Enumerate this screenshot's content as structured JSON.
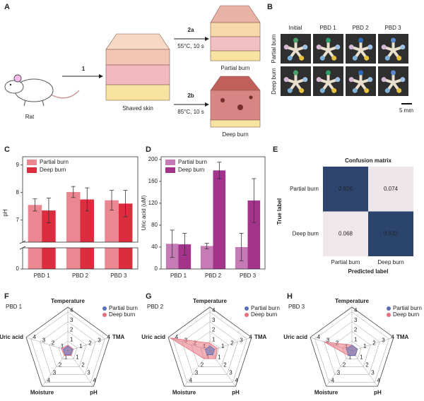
{
  "schematic": {
    "label": "A",
    "step1": "1",
    "step2a": "2a",
    "cond2a": "55°C, 10 s",
    "step2b": "2b",
    "cond2b": "85°C, 10 s",
    "rat": "Rat",
    "skin": "Shaved skin",
    "partial": "Partial burn",
    "deep": "Deep burn"
  },
  "photos": {
    "label": "B",
    "columns": [
      "Initial",
      "PBD 1",
      "PBD 2",
      "PBD 3"
    ],
    "rows": [
      "Partial burn",
      "Deep burn"
    ],
    "scale": "5 mm"
  },
  "chart_data": [
    {
      "type": "bar",
      "label": "C",
      "categories": [
        "PBD 1",
        "PBD 2",
        "PBD 3"
      ],
      "ylabel": "pH",
      "ylim": [
        0,
        9.3
      ],
      "ybreak": [
        0.6,
        6.2
      ],
      "yticks": [
        0,
        7,
        8,
        9
      ],
      "legend": "upper left",
      "series": [
        {
          "name": "Partial burn",
          "color": "#ea8791",
          "values": [
            7.55,
            8.02,
            7.72
          ],
          "errors": [
            0.22,
            0.2,
            0.36
          ]
        },
        {
          "name": "Deep burn",
          "color": "#dc2d3f",
          "values": [
            7.35,
            7.75,
            7.6
          ],
          "errors": [
            0.45,
            0.42,
            0.48
          ]
        }
      ]
    },
    {
      "type": "bar",
      "label": "D",
      "categories": [
        "PBD 1",
        "PBD 2",
        "PBD 3"
      ],
      "ylabel": "Uric acid (uM)",
      "ylim": [
        0,
        205
      ],
      "yticks": [
        0,
        40,
        80,
        120,
        160,
        200
      ],
      "legend": "upper left",
      "series": [
        {
          "name": "Partial burn",
          "color": "#c77bb6",
          "values": [
            46,
            42,
            40
          ],
          "errors": [
            25,
            5,
            25
          ]
        },
        {
          "name": "Deep burn",
          "color": "#a3338b",
          "values": [
            45,
            180,
            125
          ],
          "errors": [
            20,
            15,
            40
          ]
        }
      ]
    },
    {
      "type": "heatmap",
      "label": "E",
      "title": "Confusion matrix",
      "rows": [
        "Partial burn",
        "Deep burn"
      ],
      "columns": [
        "Partial burn",
        "Deep burn"
      ],
      "values": [
        [
          0.926,
          0.074
        ],
        [
          0.068,
          0.932
        ]
      ],
      "xlabel": "Predicted label",
      "ylabel": "True label",
      "cmap": [
        "#fff4f4",
        "#1c3763"
      ]
    },
    {
      "type": "radar",
      "label": "F",
      "title": "PBD 1",
      "axes": [
        "Temperature",
        "TMA",
        "pH",
        "Moisture",
        "Uric acid"
      ],
      "axis_colors": [
        "#8aa63a",
        "#8f9ccc",
        "#e07a9a",
        "#3aa98a",
        "#a8387a"
      ],
      "rlim": [
        0,
        4.5
      ],
      "rticks": [
        1,
        2,
        3,
        4
      ],
      "legend": "upper right",
      "series": [
        {
          "name": "Partial burn",
          "color": "#5b6fb8",
          "values": [
            0.5,
            0.5,
            0.5,
            0.5,
            0.5
          ]
        },
        {
          "name": "Deep burn",
          "color": "#e8707c",
          "values": [
            0.6,
            0.6,
            0.6,
            0.6,
            0.7
          ]
        }
      ]
    },
    {
      "type": "radar",
      "label": "G",
      "title": "PBD 2",
      "axes": [
        "Temperature",
        "TMA",
        "pH",
        "Moisture",
        "Uric acid"
      ],
      "axis_colors": [
        "#8aa63a",
        "#8f9ccc",
        "#e07a9a",
        "#3aa98a",
        "#a8387a"
      ],
      "rlim": [
        0,
        4.5
      ],
      "rticks": [
        1,
        2,
        3,
        4
      ],
      "legend": "upper right",
      "series": [
        {
          "name": "Partial burn",
          "color": "#5b6fb8",
          "values": [
            0.5,
            0.5,
            0.5,
            0.5,
            0.5
          ]
        },
        {
          "name": "Deep burn",
          "color": "#e8707c",
          "values": [
            0.8,
            0.8,
            1,
            1,
            4.3
          ]
        }
      ]
    },
    {
      "type": "radar",
      "label": "H",
      "title": "PBD 3",
      "axes": [
        "Temperature",
        "TMA",
        "pH",
        "Moisture",
        "Uric acid"
      ],
      "axis_colors": [
        "#8aa63a",
        "#8f9ccc",
        "#e07a9a",
        "#3aa98a",
        "#a8387a"
      ],
      "rlim": [
        0,
        4.5
      ],
      "rticks": [
        1,
        2,
        3,
        4
      ],
      "legend": "upper right",
      "series": [
        {
          "name": "Partial burn",
          "color": "#5b6fb8",
          "values": [
            0.6,
            0.6,
            0.6,
            0.6,
            0.6
          ]
        },
        {
          "name": "Deep burn",
          "color": "#e8707c",
          "values": [
            0.6,
            0.6,
            0.6,
            0.6,
            3
          ]
        }
      ]
    }
  ]
}
